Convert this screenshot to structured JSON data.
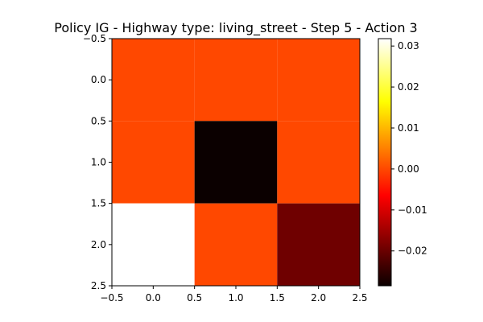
{
  "chart_data": {
    "type": "heatmap",
    "title": "Policy IG - Highway type: living_street - Step 5 - Action 3",
    "xlabel": "",
    "ylabel": "",
    "x_ticks": [
      "−0.5",
      "0.0",
      "0.5",
      "1.0",
      "1.5",
      "2.0",
      "2.5"
    ],
    "y_ticks": [
      "−0.5",
      "0.0",
      "0.5",
      "1.0",
      "1.5",
      "2.0",
      "2.5"
    ],
    "xlim": [
      -0.5,
      2.5
    ],
    "ylim": [
      2.5,
      -0.5
    ],
    "values": [
      [
        0.0,
        0.0,
        0.0
      ],
      [
        0.0,
        -0.0285,
        0.0
      ],
      [
        0.0318,
        0.0,
        -0.0195
      ]
    ],
    "colormap": "hot",
    "colorbar": {
      "min": -0.0285,
      "max": 0.0318,
      "ticks": [
        0.03,
        0.02,
        0.01,
        0.0,
        -0.01,
        -0.02
      ],
      "tick_labels": [
        "0.03",
        "0.02",
        "0.01",
        "0.00",
        "−0.01",
        "−0.02"
      ]
    },
    "grid": false
  }
}
